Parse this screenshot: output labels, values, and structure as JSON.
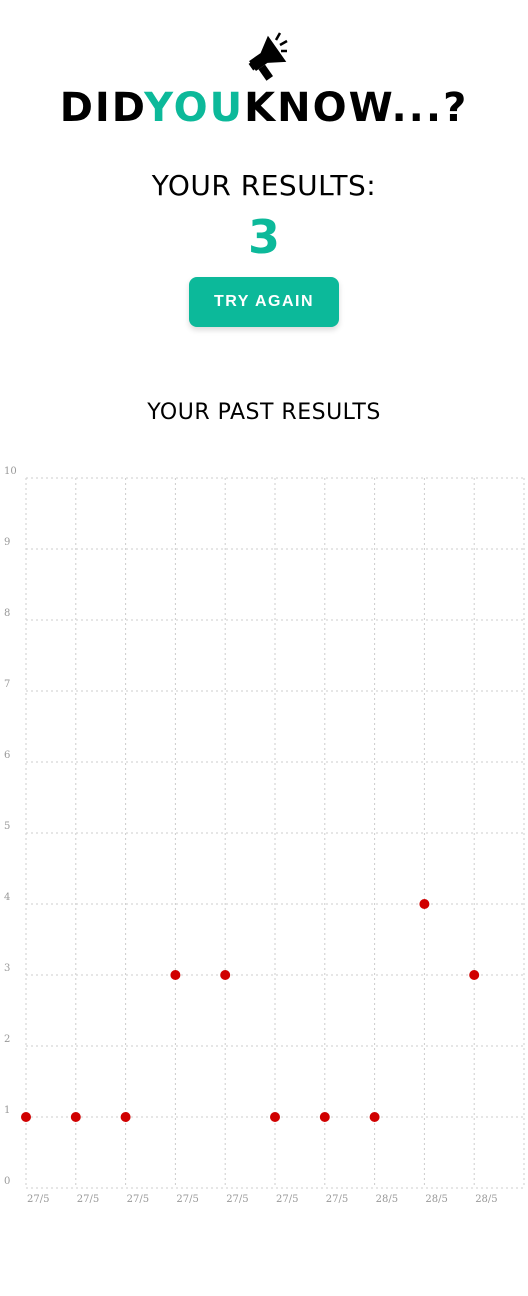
{
  "header": {
    "icon": "megaphone-icon",
    "title_part1": "DID",
    "title_part2": "YOU",
    "title_part3": "KNOW...?",
    "accent_color": "#0cb99a"
  },
  "results": {
    "label": "YOUR RESULTS:",
    "score": "3",
    "try_again_label": "TRY AGAIN"
  },
  "past": {
    "title": "YOUR PAST RESULTS"
  },
  "chart_data": {
    "type": "scatter",
    "x": [
      "27/5",
      "27/5",
      "27/5",
      "27/5",
      "27/5",
      "27/5",
      "27/5",
      "28/5",
      "28/5",
      "28/5"
    ],
    "y": [
      1,
      1,
      1,
      3,
      3,
      1,
      1,
      1,
      4,
      3
    ],
    "ylim": [
      0,
      10
    ],
    "yticks": [
      "0",
      "1",
      "2",
      "3",
      "4",
      "5",
      "6",
      "7",
      "8",
      "9",
      "10"
    ],
    "grid": true,
    "point_color": "#d00000",
    "title": "",
    "xlabel": "",
    "ylabel": ""
  }
}
